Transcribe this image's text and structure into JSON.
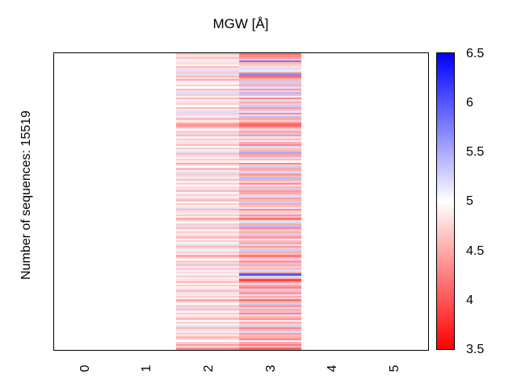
{
  "figure": {
    "title": "MGW [Å]",
    "ylabel": "Number of sequences: 15519"
  },
  "chart_data": {
    "type": "heatmap",
    "title": "MGW [Å]",
    "ylabel": "Number of sequences: 15519",
    "n_sequences": 15519,
    "x_ticks": [
      "0",
      "1",
      "2",
      "3",
      "4",
      "5"
    ],
    "x_range": [
      -0.5,
      5.5
    ],
    "grid": false,
    "legend": false,
    "columns_x_extent": [
      [
        1.5,
        2.5
      ],
      [
        2.5,
        3.5
      ]
    ],
    "colorbar": {
      "min": 3.5,
      "max": 6.5,
      "tick_labels": [
        "6.5",
        "6",
        "5.5",
        "5",
        "4.5",
        "4",
        "3.5"
      ],
      "colormap": "red-white-blue",
      "color_low": "#ff0000",
      "color_mid": "#ffffff",
      "color_high": "#0000ff"
    },
    "rows": [
      [
        4.7,
        4.2
      ],
      [
        4.8,
        4.3
      ],
      [
        4.6,
        4.4
      ],
      [
        4.9,
        4.7
      ],
      [
        5.1,
        5.8
      ],
      [
        4.8,
        4.6
      ],
      [
        5.0,
        4.7
      ],
      [
        4.6,
        4.8
      ],
      [
        4.8,
        5.2
      ],
      [
        5.2,
        5.1
      ],
      [
        4.7,
        4.5
      ],
      [
        5.2,
        5.7
      ],
      [
        4.6,
        4.1
      ],
      [
        4.8,
        4.4
      ],
      [
        4.5,
        4.6
      ],
      [
        5.1,
        5.3
      ],
      [
        4.9,
        4.6
      ],
      [
        4.7,
        4.5
      ],
      [
        5.0,
        5.2
      ],
      [
        4.6,
        4.4
      ],
      [
        4.8,
        4.7
      ],
      [
        5.2,
        5.4
      ],
      [
        4.7,
        4.6
      ],
      [
        4.9,
        5.1
      ],
      [
        4.6,
        4.3
      ],
      [
        5.1,
        5.2
      ],
      [
        4.8,
        4.5
      ],
      [
        4.7,
        4.7
      ],
      [
        5.0,
        5.3
      ],
      [
        4.6,
        4.4
      ],
      [
        4.9,
        4.6
      ],
      [
        5.2,
        5.2
      ],
      [
        4.7,
        4.3
      ],
      [
        4.8,
        4.8
      ],
      [
        5.1,
        5.4
      ],
      [
        4.6,
        4.5
      ],
      [
        4.9,
        4.7
      ],
      [
        4.7,
        4.4
      ],
      [
        4.4,
        4.1
      ],
      [
        4.4,
        4.2
      ],
      [
        4.8,
        4.6
      ],
      [
        5.0,
        5.2
      ],
      [
        4.7,
        4.5
      ],
      [
        5.2,
        5.3
      ],
      [
        4.6,
        4.4
      ],
      [
        4.9,
        4.8
      ],
      [
        4.7,
        4.6
      ],
      [
        5.1,
        5.1
      ],
      [
        4.8,
        4.5
      ],
      [
        4.6,
        4.3
      ],
      [
        5.0,
        5.2
      ],
      [
        4.7,
        4.7
      ],
      [
        4.9,
        4.6
      ],
      [
        5.2,
        5.5
      ],
      [
        4.6,
        4.4
      ],
      [
        4.8,
        4.5
      ],
      [
        5.1,
        5.2
      ],
      [
        4.7,
        4.6
      ],
      [
        4.9,
        5.0
      ],
      [
        4.5,
        4.3
      ],
      [
        4.8,
        4.7
      ],
      [
        5.0,
        5.3
      ],
      [
        4.6,
        4.5
      ],
      [
        4.9,
        4.6
      ],
      [
        5.2,
        5.2
      ],
      [
        4.7,
        4.4
      ],
      [
        4.8,
        4.6
      ],
      [
        5.1,
        5.4
      ],
      [
        4.6,
        4.5
      ],
      [
        4.9,
        4.7
      ],
      [
        4.7,
        4.3
      ],
      [
        5.0,
        5.1
      ],
      [
        4.8,
        4.6
      ],
      [
        5.2,
        5.3
      ],
      [
        4.6,
        4.4
      ],
      [
        4.9,
        4.5
      ],
      [
        4.7,
        4.7
      ],
      [
        5.1,
        5.2
      ],
      [
        4.8,
        4.4
      ],
      [
        4.6,
        4.6
      ],
      [
        5.0,
        5.3
      ],
      [
        4.7,
        4.5
      ],
      [
        4.9,
        4.6
      ],
      [
        5.2,
        5.1
      ],
      [
        4.6,
        4.3
      ],
      [
        4.8,
        4.7
      ],
      [
        5.1,
        5.2
      ],
      [
        4.7,
        4.4
      ],
      [
        4.9,
        4.6
      ],
      [
        4.5,
        4.2
      ],
      [
        4.8,
        4.8
      ],
      [
        5.0,
        5.2
      ],
      [
        4.7,
        4.5
      ],
      [
        5.2,
        5.4
      ],
      [
        4.6,
        4.3
      ],
      [
        4.9,
        4.7
      ],
      [
        4.7,
        4.5
      ],
      [
        5.1,
        5.3
      ],
      [
        4.8,
        4.6
      ],
      [
        4.6,
        4.4
      ],
      [
        5.0,
        5.1
      ],
      [
        4.7,
        4.6
      ],
      [
        4.9,
        4.5
      ],
      [
        5.2,
        5.2
      ],
      [
        4.6,
        4.4
      ],
      [
        4.8,
        4.7
      ],
      [
        5.1,
        5.3
      ],
      [
        4.7,
        4.5
      ],
      [
        4.9,
        4.6
      ],
      [
        4.5,
        4.2
      ],
      [
        4.8,
        4.6
      ],
      [
        5.0,
        5.2
      ],
      [
        4.7,
        4.4
      ],
      [
        5.2,
        5.3
      ],
      [
        4.6,
        4.5
      ],
      [
        4.9,
        4.7
      ],
      [
        4.7,
        4.6
      ],
      [
        5.1,
        5.2
      ],
      [
        4.8,
        4.5
      ],
      [
        5.1,
        6.0
      ],
      [
        4.7,
        5.2
      ],
      [
        4.9,
        4.6
      ],
      [
        4.8,
        3.9
      ],
      [
        4.6,
        4.4
      ],
      [
        5.0,
        5.2
      ],
      [
        4.7,
        4.5
      ],
      [
        4.9,
        4.3
      ],
      [
        5.2,
        5.3
      ],
      [
        4.6,
        4.6
      ],
      [
        4.8,
        4.4
      ],
      [
        5.1,
        5.2
      ],
      [
        4.7,
        4.5
      ],
      [
        4.9,
        4.7
      ],
      [
        4.5,
        4.2
      ],
      [
        4.8,
        4.6
      ],
      [
        5.0,
        5.3
      ],
      [
        4.7,
        4.4
      ],
      [
        5.2,
        5.2
      ],
      [
        4.6,
        4.5
      ],
      [
        4.9,
        4.6
      ],
      [
        4.7,
        4.3
      ],
      [
        5.1,
        5.2
      ],
      [
        4.8,
        4.6
      ],
      [
        4.6,
        4.4
      ],
      [
        5.0,
        5.1
      ],
      [
        4.7,
        4.5
      ],
      [
        4.9,
        4.7
      ],
      [
        5.2,
        5.3
      ],
      [
        4.6,
        4.3
      ],
      [
        4.8,
        4.6
      ],
      [
        5.1,
        5.2
      ],
      [
        4.7,
        4.4
      ],
      [
        4.9,
        4.6
      ],
      [
        4.6,
        4.5
      ],
      [
        4.8,
        4.3
      ],
      [
        5.0,
        5.1
      ],
      [
        4.7,
        4.5
      ],
      [
        4.4,
        4.2
      ],
      [
        4.8,
        4.6
      ],
      [
        4.3,
        4.1
      ]
    ]
  }
}
